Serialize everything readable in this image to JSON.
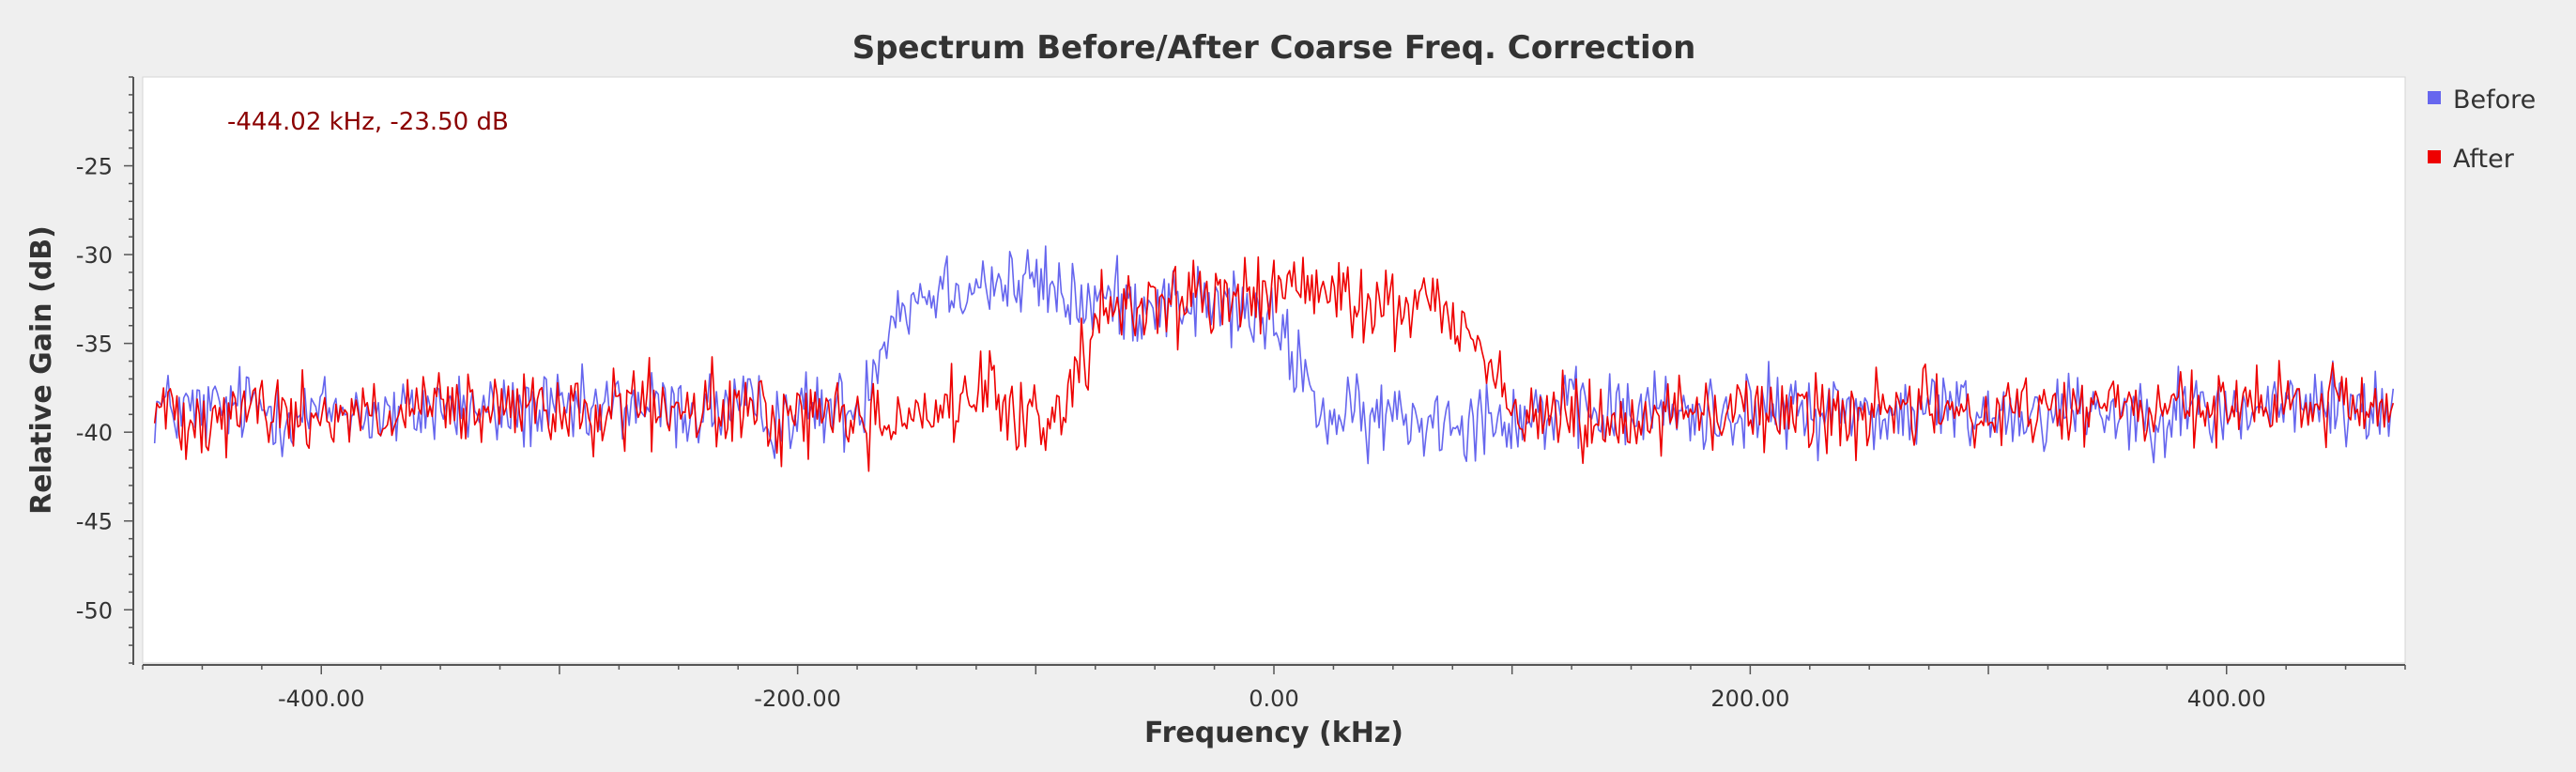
{
  "chart_data": {
    "type": "line",
    "title": "Spectrum Before/After Coarse Freq. Correction",
    "xlabel": "Frequency (kHz)",
    "ylabel": "Relative Gain (dB)",
    "xlim": [
      -475,
      475
    ],
    "ylim": [
      -53,
      -20
    ],
    "xticks": [
      -400,
      -200,
      0,
      200,
      400
    ],
    "xtick_labels": [
      "-400.00",
      "-200.00",
      "0.00",
      "200.00",
      "400.00"
    ],
    "yticks": [
      -25,
      -30,
      -35,
      -40,
      -45,
      -50
    ],
    "ytick_labels": [
      "-25",
      "-30",
      "-35",
      "-40",
      "-45",
      "-50"
    ],
    "grid": false,
    "legend_position": "right",
    "marker_readout": "-444.02 kHz, -23.50 dB",
    "series": [
      {
        "name": "Before",
        "color": "#6666ee",
        "x": [
          -470,
          -450,
          -430,
          -410,
          -390,
          -370,
          -350,
          -330,
          -310,
          -290,
          -270,
          -250,
          -230,
          -210,
          -190,
          -175,
          -170,
          -165,
          -160,
          -150,
          -140,
          -130,
          -120,
          -110,
          -100,
          -90,
          -80,
          -70,
          -60,
          -50,
          -40,
          -30,
          -20,
          -10,
          0,
          10,
          15,
          20,
          25,
          30,
          40,
          50,
          60,
          70,
          80,
          90,
          100,
          120,
          140,
          160,
          180,
          200,
          220,
          240,
          260,
          280,
          300,
          320,
          340,
          360,
          380,
          400,
          420,
          440,
          460,
          470
        ],
        "y": [
          -38.6,
          -38.9,
          -38.4,
          -39.1,
          -38.7,
          -39.2,
          -38.5,
          -38.9,
          -38.8,
          -39.0,
          -38.4,
          -38.9,
          -38.6,
          -39.1,
          -38.7,
          -38.8,
          -37.0,
          -35.0,
          -33.2,
          -32.4,
          -31.8,
          -31.6,
          -31.5,
          -31.8,
          -31.5,
          -32.2,
          -32.8,
          -32.5,
          -32.8,
          -32.5,
          -32.7,
          -32.8,
          -32.9,
          -33.4,
          -34.2,
          -36.0,
          -37.6,
          -38.8,
          -39.4,
          -39.2,
          -39.4,
          -39.0,
          -39.3,
          -39.1,
          -39.2,
          -38.9,
          -39.1,
          -38.8,
          -39.0,
          -38.7,
          -39.1,
          -38.6,
          -38.9,
          -38.7,
          -39.2,
          -38.6,
          -38.9,
          -38.8,
          -38.5,
          -39.0,
          -38.7,
          -38.9,
          -38.6,
          -38.4,
          -38.7,
          -38.8
        ]
      },
      {
        "name": "After",
        "color": "#ee0000",
        "x": [
          -470,
          -450,
          -430,
          -410,
          -390,
          -370,
          -350,
          -330,
          -310,
          -290,
          -270,
          -250,
          -230,
          -210,
          -190,
          -170,
          -150,
          -130,
          -120,
          -110,
          -100,
          -95,
          -90,
          -85,
          -80,
          -70,
          -60,
          -50,
          -40,
          -30,
          -20,
          -10,
          0,
          10,
          20,
          30,
          40,
          50,
          60,
          70,
          78,
          82,
          86,
          90,
          94,
          100,
          110,
          120,
          140,
          160,
          180,
          200,
          220,
          240,
          260,
          280,
          300,
          320,
          340,
          360,
          380,
          400,
          420,
          440,
          460,
          470
        ],
        "y": [
          -38.7,
          -39.0,
          -38.5,
          -39.2,
          -38.8,
          -39.3,
          -38.6,
          -39.0,
          -38.7,
          -39.1,
          -38.5,
          -39.0,
          -38.7,
          -39.2,
          -38.8,
          -39.4,
          -38.9,
          -38.3,
          -38.0,
          -39.0,
          -39.2,
          -39.5,
          -39.0,
          -37.2,
          -35.2,
          -33.5,
          -32.6,
          -32.8,
          -32.4,
          -32.3,
          -32.6,
          -32.3,
          -32.2,
          -31.6,
          -32.3,
          -32.6,
          -32.9,
          -32.8,
          -32.4,
          -33.0,
          -33.8,
          -34.4,
          -34.9,
          -35.6,
          -37.2,
          -38.6,
          -39.4,
          -39.0,
          -39.2,
          -38.8,
          -39.1,
          -38.6,
          -38.9,
          -38.7,
          -39.1,
          -38.6,
          -38.9,
          -38.7,
          -38.4,
          -38.8,
          -38.6,
          -38.9,
          -38.5,
          -38.4,
          -38.6,
          -38.8
        ]
      }
    ]
  }
}
